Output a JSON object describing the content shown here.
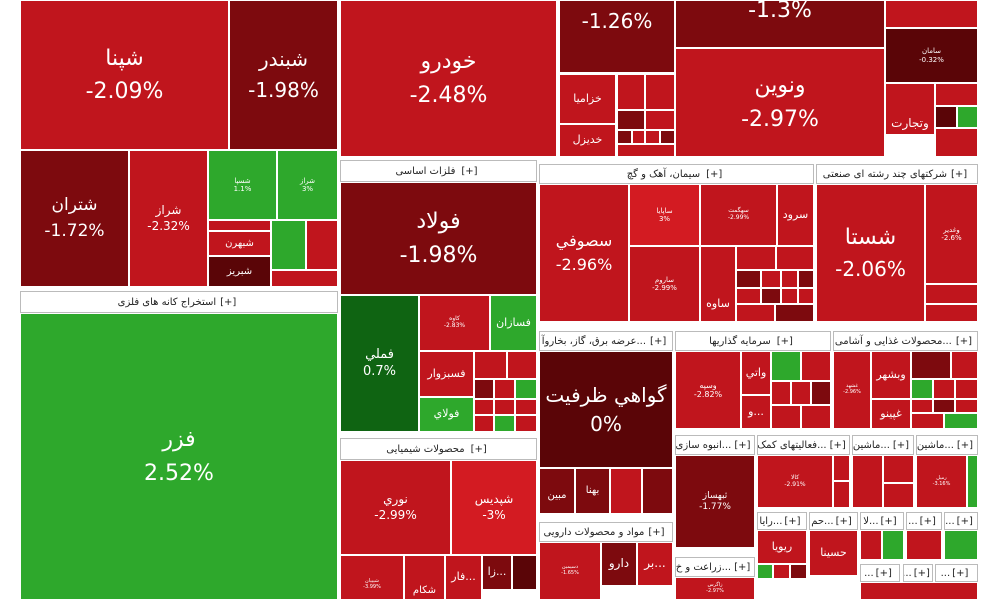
{
  "colors": {
    "green_bright": "#2ea82c",
    "green_dark": "#0f6412",
    "red": "#c0151d",
    "red_light": "#d31b22",
    "red_dark": "#7d0a0e",
    "red_darker": "#5a0507"
  },
  "tiles": {
    "shepna": {
      "name": "شپنا",
      "pct": "-2.09%"
    },
    "shabandar": {
      "name": "شبندر",
      "pct": "-1.98%"
    },
    "khodro": {
      "name": "خودرو",
      "pct": "-2.48%"
    },
    "t126": {
      "pct": "-1.26%"
    },
    "t13": {
      "pct": "-1.3%"
    },
    "saman": {
      "name": "سامان",
      "pct": "-0.32%"
    },
    "vanovin": {
      "name": "ونوین",
      "pct": "-2.97%"
    },
    "vatejarat": {
      "name": "وتجارت"
    },
    "khazamia": {
      "name": "خزامیا"
    },
    "khodizel": {
      "name": "خدیزل"
    },
    "shetran": {
      "name": "شتران",
      "pct": "-1.72%"
    },
    "sheraz": {
      "name": "شراز",
      "pct": "-2.32%"
    },
    "shesina": {
      "name": "شسپا",
      "pct": "1.1%"
    },
    "shoraz": {
      "name": "شراز",
      "pct": "3%"
    },
    "shebhran": {
      "name": "شبهرن"
    },
    "shabriz": {
      "name": "شبریز"
    },
    "fezar": {
      "name": "فزر",
      "pct": "2.52%"
    },
    "foolad": {
      "name": "فولاد",
      "pct": "-1.98%"
    },
    "fameli": {
      "name": "فملي",
      "pct": "0.7%"
    },
    "fesazan": {
      "name": "فسازان"
    },
    "kave": {
      "name": "کاوه",
      "pct": "-2.83%"
    },
    "fesabzevar": {
      "name": "فسبزوار"
    },
    "foolay": {
      "name": "فولاي"
    },
    "sofi": {
      "name": "سصوفي",
      "pct": "-2.96%"
    },
    "sapaya": {
      "name": "ساپایا",
      "pct": "3%"
    },
    "saroom": {
      "name": "ساروم",
      "pct": "-2.99%"
    },
    "sahegmat": {
      "name": "سهگمت",
      "pct": "-2.99%"
    },
    "sarood": {
      "name": "سرود"
    },
    "saveh": {
      "name": "ساوه"
    },
    "shasta": {
      "name": "شستا",
      "pct": "-2.06%"
    },
    "vaghadir": {
      "name": "وغدير",
      "pct": "-2.6%"
    },
    "gavahi": {
      "name": "گواهي ظرفيت",
      "pct": "0%"
    },
    "bahna": {
      "name": "بهنا"
    },
    "mobin": {
      "name": "مبين"
    },
    "vasiya": {
      "name": "وسپه",
      "pct": "-2.82%"
    },
    "vati": {
      "name": "واتي"
    },
    "vaa": {
      "name": "و..."
    },
    "vabshahr": {
      "name": "وبشهر"
    },
    "ghpino": {
      "name": "غپینو"
    },
    "ghshedir": {
      "name": "غشهد",
      "pct": "-2.96%"
    },
    "noori": {
      "name": "نوري",
      "pct": "-2.99%"
    },
    "shepdis": {
      "name": "شپديس",
      "pct": "-3%"
    },
    "shekam": {
      "name": "شکام"
    },
    "far": {
      "name": "فار..."
    },
    "za": {
      "name": "زا..."
    },
    "daroo": {
      "name": "دارو"
    },
    "bar": {
      "name": "بر..."
    },
    "dasimin": {
      "name": "دسیمین",
      "pct": "-1.65%"
    },
    "shepipan": {
      "name": "شپیپان",
      "pct": "-3.99%"
    },
    "tehsaz": {
      "name": "ثبهساز",
      "pct": "-1.77%"
    },
    "kala": {
      "name": "کالا",
      "pct": "-2.91%"
    },
    "rebia": {
      "name": "ريويا"
    },
    "hasina": {
      "name": "حسينا"
    },
    "rimil": {
      "name": "رمیل",
      "pct": "-3.16%"
    },
    "zagros": {
      "name": "زاگرس",
      "pct": "-2.97%"
    }
  },
  "headers": {
    "open_icon": "[+]",
    "estekhraj": "استخراج کانه های فلزی",
    "felezat": "فلزات اساسی",
    "siman": "سیمان، آهک و گچ",
    "chandreshte": "شرکتهای چند رشته ای صنعتی",
    "arze_bargh": "عرضه برق، گاز، بخاروآ...",
    "sarmaye": "سرمایه گذاریها",
    "ghazaei": "محصولات غذایی و آشامی...",
    "shimiaei": "محصولات شیمیایی",
    "daroei": "مواد و محصولات دارویی",
    "anboohsazi": "انبوه سازی...",
    "faaliyat": "فعالیتهای کمک...",
    "mashin1": "ماشین...",
    "mashin2": "ماشین...",
    "zeraat": "زراعت و خ...",
    "raya": "رایا...",
    "ham": "حم...",
    "la": "لا...",
    "dots": "..."
  }
}
